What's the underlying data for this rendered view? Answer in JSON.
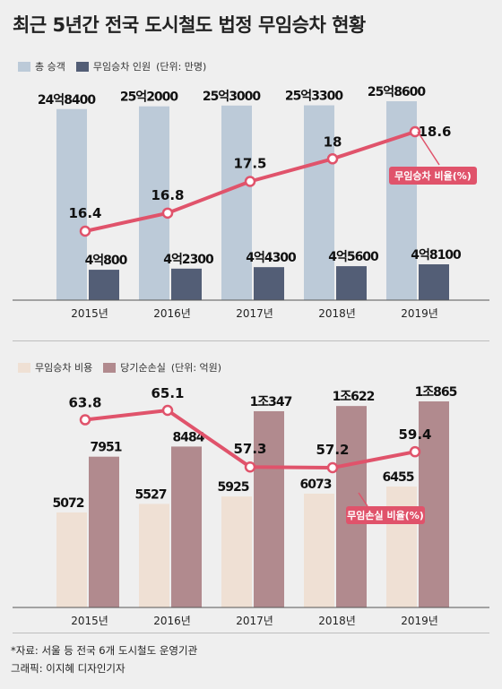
{
  "title": "최근 5년간 전국 도시철도 법정 무임승차 현황",
  "colors": {
    "total_passengers": "#bccad8",
    "free_riders": "#535e76",
    "line": "#e0536b",
    "cost": "#efe0d4",
    "loss": "#b18a8e"
  },
  "chart_data": [
    {
      "type": "bar",
      "categories": [
        "2015년",
        "2016년",
        "2017년",
        "2018년",
        "2019년"
      ],
      "legend_note": "(단위: 만명)",
      "series": [
        {
          "name": "총 승객",
          "values": [
            248400,
            252000,
            253000,
            253300,
            258600
          ],
          "labels": [
            "24억8400",
            "25억2000",
            "25억3000",
            "25억3300",
            "25억8600"
          ]
        },
        {
          "name": "무임승차 인원",
          "values": [
            40800,
            42300,
            44300,
            45600,
            48100
          ],
          "labels": [
            "4억800",
            "4억2300",
            "4억4300",
            "4억5600",
            "4억8100"
          ]
        }
      ],
      "line": {
        "name": "무임승차 비율(%)",
        "values": [
          16.4,
          16.8,
          17.5,
          18,
          18.6
        ],
        "labels": [
          "16.4",
          "16.8",
          "17.5",
          "18",
          "18.6"
        ]
      }
    },
    {
      "type": "bar",
      "categories": [
        "2015년",
        "2016년",
        "2017년",
        "2018년",
        "2019년"
      ],
      "legend_note": "(단위: 억원)",
      "series": [
        {
          "name": "무임승차 비용",
          "values": [
            5072,
            5527,
            5925,
            6073,
            6455
          ],
          "labels": [
            "5072",
            "5527",
            "5925",
            "6073",
            "6455"
          ]
        },
        {
          "name": "당기순손실",
          "values": [
            7951,
            8484,
            10347,
            10622,
            10865
          ],
          "labels": [
            "7951",
            "8484",
            "1조347",
            "1조622",
            "1조865"
          ]
        }
      ],
      "line": {
        "name": "무임손실 비율(%)",
        "values": [
          63.8,
          65.1,
          57.3,
          57.2,
          59.4
        ],
        "labels": [
          "63.8",
          "65.1",
          "57.3",
          "57.2",
          "59.4"
        ]
      }
    }
  ],
  "footer": {
    "source": "*자료: 서울 등 전국 6개 도시철도 운영기관",
    "credit": "그래픽: 이지혜 디자인기자"
  }
}
